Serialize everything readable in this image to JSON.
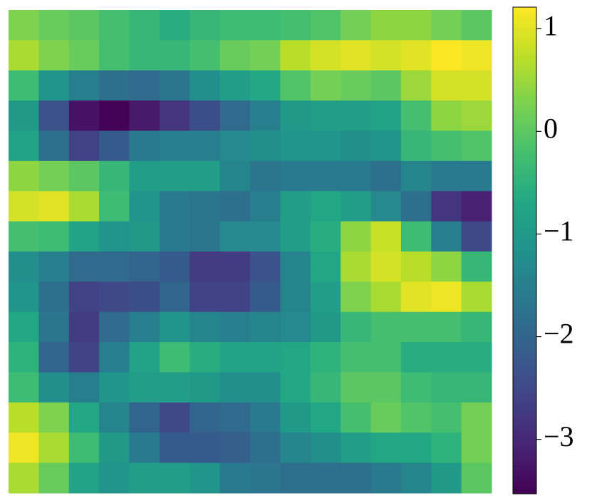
{
  "chart_data": {
    "type": "heatmap",
    "colormap": "viridis",
    "values": [
      [
        0.3,
        0.1,
        0.0,
        -0.2,
        -0.4,
        -0.6,
        -0.4,
        -0.3,
        -0.3,
        -0.2,
        -0.1,
        0.2,
        0.4,
        0.4,
        0.2,
        0.0
      ],
      [
        0.6,
        0.3,
        0.1,
        -0.2,
        -0.4,
        -0.4,
        -0.2,
        0.1,
        0.2,
        0.7,
        0.9,
        1.0,
        0.9,
        1.0,
        1.2,
        1.1
      ],
      [
        -0.3,
        -1.1,
        -1.5,
        -1.8,
        -1.9,
        -1.7,
        -1.2,
        -0.9,
        -0.7,
        -0.1,
        0.2,
        0.1,
        0.0,
        0.5,
        0.9,
        0.9
      ],
      [
        -1.0,
        -2.3,
        -3.3,
        -3.5,
        -3.2,
        -2.8,
        -2.4,
        -1.9,
        -1.5,
        -1.0,
        -0.9,
        -0.9,
        -0.8,
        -0.2,
        0.4,
        0.5
      ],
      [
        -0.8,
        -1.8,
        -2.6,
        -2.2,
        -1.6,
        -1.5,
        -1.5,
        -1.3,
        -1.2,
        -1.1,
        -1.1,
        -1.2,
        -1.1,
        -0.4,
        -0.2,
        -0.1
      ],
      [
        0.4,
        0.2,
        0.0,
        -0.4,
        -0.9,
        -0.9,
        -0.9,
        -1.4,
        -1.7,
        -1.6,
        -1.6,
        -1.6,
        -1.8,
        -1.4,
        -1.6,
        -1.6
      ],
      [
        0.9,
        1.0,
        0.6,
        -0.3,
        -1.1,
        -1.6,
        -1.7,
        -1.8,
        -1.5,
        -0.9,
        -0.7,
        -0.9,
        -1.3,
        -1.8,
        -2.8,
        -3.1
      ],
      [
        -0.2,
        -0.3,
        -0.8,
        -1.1,
        -1.0,
        -1.6,
        -1.7,
        -1.3,
        -1.3,
        -0.9,
        -0.6,
        0.4,
        0.8,
        -0.3,
        -1.5,
        -2.5
      ],
      [
        -1.2,
        -1.5,
        -1.9,
        -1.9,
        -2.0,
        -2.2,
        -2.7,
        -2.7,
        -2.3,
        -1.4,
        -0.7,
        0.6,
        0.9,
        0.7,
        0.4,
        -0.4
      ],
      [
        -1.1,
        -1.8,
        -2.6,
        -2.5,
        -2.4,
        -2.0,
        -2.6,
        -2.6,
        -2.2,
        -1.4,
        -0.9,
        0.3,
        0.6,
        1.0,
        1.1,
        0.6
      ],
      [
        -0.7,
        -1.7,
        -2.7,
        -1.9,
        -1.5,
        -1.1,
        -1.4,
        -1.5,
        -1.4,
        -1.3,
        -1.0,
        -0.4,
        -0.2,
        -0.2,
        -0.2,
        -0.4
      ],
      [
        -0.5,
        -2.0,
        -2.6,
        -1.5,
        -0.8,
        -0.3,
        -0.6,
        -0.8,
        -0.8,
        -0.7,
        -0.5,
        -0.2,
        -0.2,
        -0.6,
        -0.6,
        -0.6
      ],
      [
        -0.3,
        -1.2,
        -1.5,
        -1.1,
        -0.9,
        -0.9,
        -1.0,
        -1.2,
        -1.2,
        -0.7,
        -0.4,
        0.0,
        0.0,
        -0.3,
        -0.4,
        -0.4
      ],
      [
        0.7,
        0.3,
        -0.7,
        -1.4,
        -2.0,
        -2.5,
        -2.0,
        -1.9,
        -1.6,
        -1.0,
        -0.7,
        -0.2,
        0.1,
        -0.1,
        -0.2,
        0.2
      ],
      [
        1.1,
        0.6,
        -0.3,
        -1.0,
        -1.6,
        -2.2,
        -2.2,
        -2.1,
        -1.8,
        -1.4,
        -1.2,
        -0.9,
        -0.7,
        -0.7,
        -0.5,
        0.2
      ],
      [
        0.6,
        0.1,
        -0.8,
        -1.1,
        -0.9,
        -0.9,
        -1.1,
        -1.6,
        -1.7,
        -1.8,
        -1.8,
        -1.8,
        -1.6,
        -1.4,
        -1.0,
        0.0
      ]
    ],
    "zlim": [
      -3.53,
      1.21
    ],
    "zticks": [
      1,
      0,
      {
        "value": -1,
        "label": "−1"
      },
      {
        "value": -2,
        "label": "−2"
      },
      {
        "value": -3,
        "label": "−3"
      }
    ]
  }
}
